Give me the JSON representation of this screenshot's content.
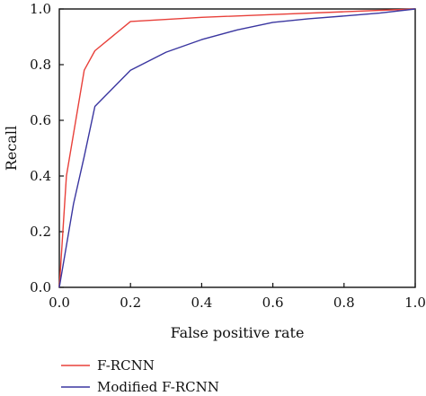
{
  "chart_data": {
    "type": "line",
    "title": "",
    "xlabel": "False positive rate",
    "ylabel": "Recall",
    "xlim": [
      0.0,
      1.0
    ],
    "ylim": [
      0.0,
      1.0
    ],
    "x_ticks": [
      "0.0",
      "0.2",
      "0.4",
      "0.6",
      "0.8",
      "1.0"
    ],
    "y_ticks": [
      "0.0",
      "0.2",
      "0.4",
      "0.6",
      "0.8",
      "1.0"
    ],
    "grid": false,
    "legend_position": "below",
    "series": [
      {
        "name": "F-RCNN",
        "color": "#e8403a",
        "points": [
          [
            0.0,
            0.0
          ],
          [
            0.02,
            0.4
          ],
          [
            0.07,
            0.78
          ],
          [
            0.1,
            0.85
          ],
          [
            0.2,
            0.955
          ],
          [
            0.4,
            0.97
          ],
          [
            0.6,
            0.98
          ],
          [
            0.8,
            0.99
          ],
          [
            1.0,
            1.0
          ]
        ]
      },
      {
        "name": "Modified F-RCNN",
        "color": "#3a36a0",
        "points": [
          [
            0.0,
            0.0
          ],
          [
            0.04,
            0.3
          ],
          [
            0.07,
            0.47
          ],
          [
            0.1,
            0.65
          ],
          [
            0.2,
            0.78
          ],
          [
            0.3,
            0.845
          ],
          [
            0.4,
            0.89
          ],
          [
            0.5,
            0.925
          ],
          [
            0.6,
            0.952
          ],
          [
            0.7,
            0.965
          ],
          [
            0.8,
            0.975
          ],
          [
            0.9,
            0.985
          ],
          [
            1.0,
            1.0
          ]
        ]
      }
    ]
  }
}
